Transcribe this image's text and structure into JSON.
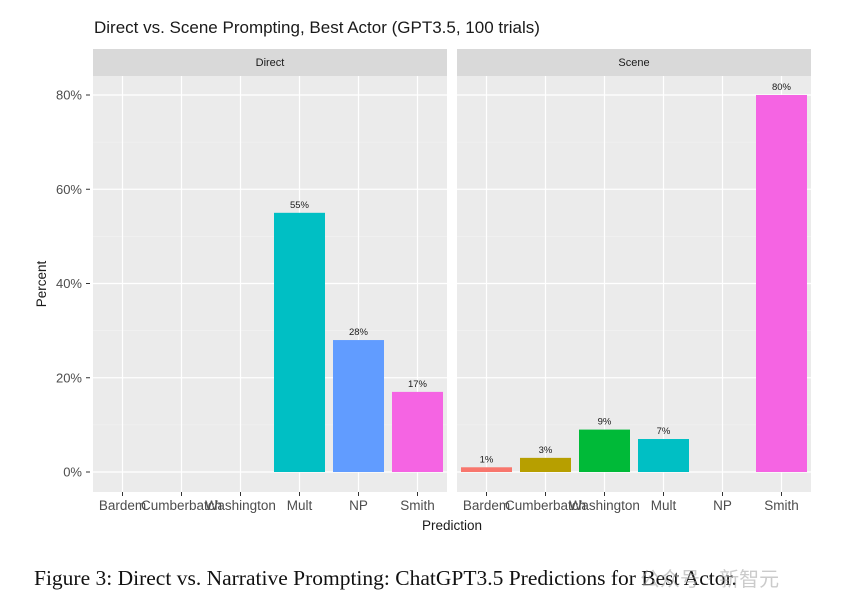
{
  "chart_data": {
    "type": "bar",
    "title": "Direct vs. Scene Prompting, Best Actor (GPT3.5, 100 trials)",
    "xlabel": "Prediction",
    "ylabel": "Percent",
    "ylim": [
      0,
      80
    ],
    "yticks": [
      "0%",
      "20%",
      "40%",
      "60%",
      "80%"
    ],
    "categories": [
      "Bardem",
      "Cumberbatch",
      "Washington",
      "Mult",
      "NP",
      "Smith"
    ],
    "category_colors": [
      "#F8766D",
      "#B79F00",
      "#00BA38",
      "#00BFC4",
      "#619CFF",
      "#F564E3"
    ],
    "grid": true,
    "legend": "none",
    "panels": [
      {
        "name": "Direct",
        "values": [
          null,
          null,
          null,
          55,
          28,
          17
        ],
        "labels": [
          "",
          "",
          "",
          "55%",
          "28%",
          "17%"
        ]
      },
      {
        "name": "Scene",
        "values": [
          1,
          3,
          9,
          7,
          null,
          80
        ],
        "labels": [
          "1%",
          "3%",
          "9%",
          "7%",
          "",
          "80%"
        ]
      }
    ]
  },
  "caption": "Figure 3: Direct vs. Narrative Prompting: ChatGPT3.5 Predictions for Best Actor.",
  "watermark": "公众号 · 新智元"
}
